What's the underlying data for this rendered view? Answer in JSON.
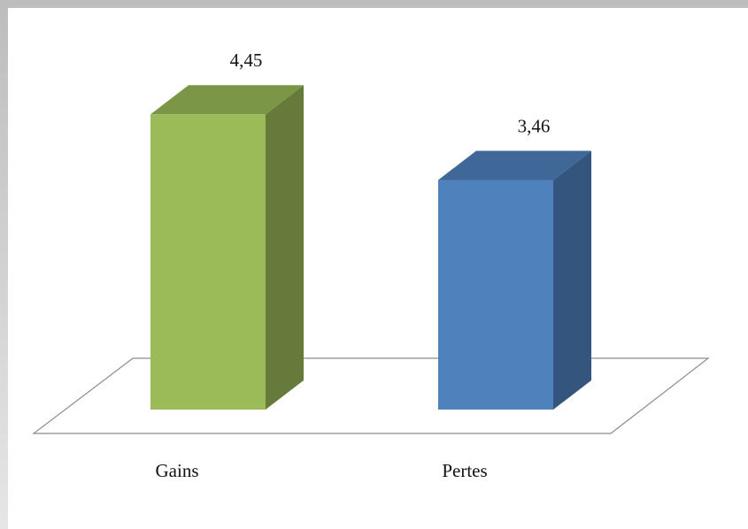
{
  "chart_data": {
    "type": "bar3d",
    "categories": [
      "Gains",
      "Pertes"
    ],
    "values": [
      4.45,
      3.46
    ],
    "value_labels": [
      "4,45",
      "3,46"
    ],
    "colors": [
      "#9bbb59",
      "#4f81bd"
    ]
  }
}
